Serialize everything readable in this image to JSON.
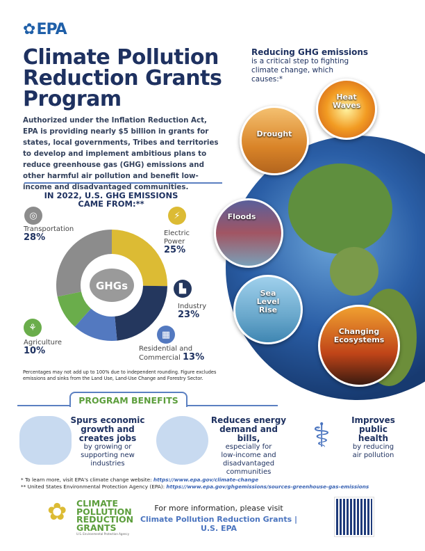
{
  "header": {
    "logo": "EPA",
    "title": "Climate Pollution Reduction Grants Program",
    "intro": "Authorized under the Inflation Reduction Act, EPA is providing nearly $5 billion in grants for states, local governments, Tribes and territories to develop and implement ambitious plans to reduce greenhouse gas (GHG) emissions and other harmful air pollution and benefit low-income and disadvantaged communities."
  },
  "impacts": {
    "title": "Reducing GHG emissions",
    "subtitle": "is a critical step to fighting climate change, which causes:*",
    "items": [
      "Heat Waves",
      "Drought",
      "Floods",
      "Sea Level Rise",
      "Changing Ecosystems"
    ]
  },
  "chart_data": {
    "type": "pie",
    "title": "IN 2022, U.S. GHG EMISSIONS CAME FROM:**",
    "center_label": "GHGs",
    "categories": [
      "Electric Power",
      "Industry",
      "Residential and Commercial",
      "Agriculture",
      "Transportation"
    ],
    "values": [
      25,
      23,
      13,
      10,
      28
    ],
    "labels": [
      "25%",
      "23%",
      "13%",
      "10%",
      "28%"
    ],
    "colors": [
      "#dcbb34",
      "#24375e",
      "#5379c0",
      "#6aad4b",
      "#8c8c8c"
    ],
    "icons": [
      "power-tower-icon",
      "factory-icon",
      "building-icon",
      "crops-icon",
      "steering-wheel-icon"
    ]
  },
  "chart_note": "Percentages may not add up to 100% due to independent rounding. Figure excludes emissions and sinks from the Land Use, Land-Use Change and Forestry Sector.",
  "benefits": {
    "title": "PROGRAM BENEFITS",
    "items": [
      {
        "head": "Spurs economic growth and creates jobs",
        "body": "by growing or supporting new industries"
      },
      {
        "head": "Reduces energy demand and bills,",
        "body": "especially for low-income and disadvantaged communities"
      },
      {
        "head": "Improves public health",
        "body": "by reducing air pollution"
      }
    ]
  },
  "footnotes": [
    {
      "text": "* To learn more, visit EPA's climate change website: ",
      "link": "https://www.epa.gov/climate-change"
    },
    {
      "text": "** United States Environmental Protection Agency (EPA): ",
      "link": "https://www.epa.gov/ghgemissions/sources-greenhouse-gas-emissions"
    }
  ],
  "footer": {
    "logo_text": "CLIMATE POLLUTION REDUCTION GRANTS",
    "logo_sub": "U.S. Environmental Protection Agency",
    "more": "For more information, please visit",
    "link": "Climate Pollution Reduction Grants | U.S. EPA"
  }
}
